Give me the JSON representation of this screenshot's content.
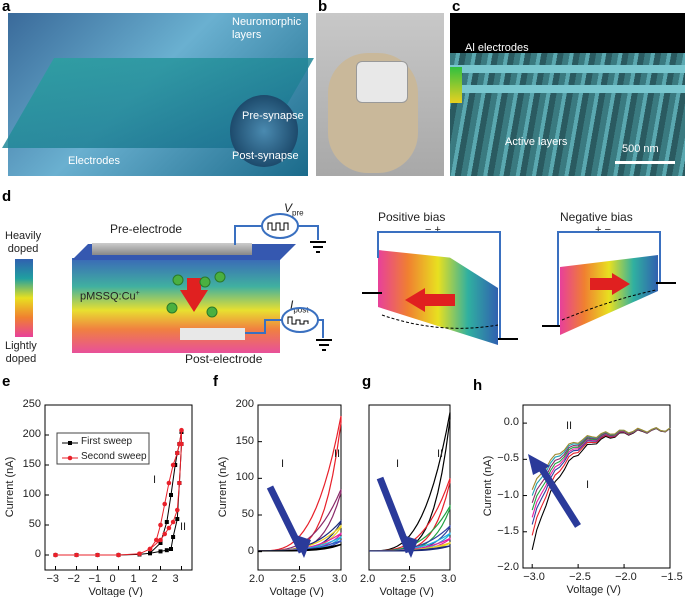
{
  "panels": {
    "a": {
      "letter": "a",
      "labels": {
        "neuromorphic": "Neuromorphic\nlayers",
        "pre": "Pre-synapse",
        "post": "Post-synapse",
        "electrodes": "Electrodes"
      }
    },
    "b": {
      "letter": "b"
    },
    "c": {
      "letter": "c",
      "labels": {
        "al": "Al electrodes",
        "active": "Active layers",
        "scale": "500 nm"
      }
    },
    "d": {
      "letter": "d",
      "colorbar_top": "Heavily\ndoped",
      "colorbar_bottom": "Lightly\ndoped",
      "pre_electrode": "Pre-electrode",
      "post_electrode": "Post-electrode",
      "material": "pMSSQ:Cu",
      "material_sup": "+",
      "vpre": "V",
      "vpre_sub": "pre",
      "ipost": "I",
      "ipost_sub": "post",
      "positive_bias": "Positive bias",
      "negative_bias": "Negative bias",
      "pos_signs": "−   +",
      "neg_signs": "+   −"
    },
    "e": {
      "letter": "e"
    },
    "f": {
      "letter": "f"
    },
    "g": {
      "letter": "g"
    },
    "h": {
      "letter": "h"
    }
  },
  "colors": {
    "heavy": "#3060b0",
    "light": "#e8409a",
    "arrow_red": "#e02020",
    "arrow_blue": "#2a3a9a",
    "circuit": "#3a70c0"
  },
  "chart_data": [
    {
      "panel": "e",
      "type": "line",
      "xlabel": "Voltage (V)",
      "ylabel": "Current (nA)",
      "xlim": [
        -3.5,
        3.5
      ],
      "ylim": [
        -25,
        250
      ],
      "xticks": [
        "−3",
        "−2",
        "−1",
        "0",
        "1",
        "2",
        "3"
      ],
      "yticks": [
        "0",
        "50",
        "100",
        "150",
        "200",
        "250"
      ],
      "legend": {
        "placement": "top-left",
        "entries": [
          "First sweep",
          "Second sweep"
        ]
      },
      "annotations": [
        "I",
        "II"
      ],
      "series": [
        {
          "name": "First sweep",
          "color": "#000000",
          "marker": "square",
          "x": [
            -3,
            -2,
            -1,
            0,
            1,
            1.5,
            2,
            2.3,
            2.5,
            2.7,
            2.8,
            2.9,
            3,
            3,
            2.9,
            2.8,
            2.6,
            2.5,
            2.3,
            2,
            1.5,
            1,
            0,
            -3
          ],
          "y": [
            0,
            0,
            0,
            0,
            1,
            3,
            20,
            55,
            100,
            150,
            170,
            185,
            205,
            185,
            120,
            60,
            30,
            10,
            8,
            6,
            3,
            1,
            0,
            0
          ]
        },
        {
          "name": "Second sweep",
          "color": "#e8202a",
          "marker": "circle",
          "x": [
            -3,
            -2,
            -1,
            0,
            1,
            1.5,
            1.8,
            2,
            2.2,
            2.4,
            2.6,
            2.8,
            2.9,
            3,
            3,
            2.9,
            2.8,
            2.6,
            2.4,
            2.2,
            2,
            1.5,
            1,
            0,
            -3
          ],
          "y": [
            0,
            0,
            0,
            0,
            2,
            10,
            25,
            50,
            85,
            120,
            150,
            170,
            185,
            208,
            185,
            120,
            75,
            55,
            45,
            35,
            25,
            10,
            2,
            0,
            0
          ]
        }
      ]
    },
    {
      "panel": "f",
      "type": "line",
      "xlabel": "Voltage (V)",
      "ylabel": "Current (nA)",
      "xlim": [
        2.0,
        3.0
      ],
      "ylim": [
        -25,
        200
      ],
      "xticks": [
        "2.0",
        "2.5",
        "3.0"
      ],
      "yticks": [
        "0",
        "50",
        "100",
        "150",
        "200"
      ],
      "annotations": [
        "I",
        "II"
      ],
      "sweeps": [
        {
          "color": "#e8202a",
          "peak": 185
        },
        {
          "color": "#8a2a6a",
          "peak": 85
        },
        {
          "color": "#1a2a7a",
          "peak": 42
        },
        {
          "color": "#e8d020",
          "peak": 35
        },
        {
          "color": "#e020a0",
          "peak": 25
        },
        {
          "color": "#20b0e0",
          "peak": 20
        },
        {
          "color": "#3050c0",
          "peak": 15
        },
        {
          "color": "#000000",
          "peak": 10
        }
      ]
    },
    {
      "panel": "g",
      "type": "line",
      "xlabel": "Voltage (V)",
      "ylabel": "",
      "xlim": [
        2.0,
        3.0
      ],
      "ylim": [
        -25,
        200
      ],
      "xticks": [
        "2.0",
        "2.5",
        "3.0"
      ],
      "yticks": [],
      "annotations": [
        "I",
        "II"
      ],
      "sweeps": [
        {
          "color": "#000000",
          "peak": 190
        },
        {
          "color": "#e8202a",
          "peak": 100
        },
        {
          "color": "#20a040",
          "peak": 62
        },
        {
          "color": "#3040a0",
          "peak": 35
        },
        {
          "color": "#20b0e0",
          "peak": 25
        },
        {
          "color": "#e020a0",
          "peak": 18
        },
        {
          "color": "#e8d020",
          "peak": 12
        },
        {
          "color": "#1a2a7a",
          "peak": 8
        }
      ]
    },
    {
      "panel": "h",
      "type": "line",
      "xlabel": "Voltage (V)",
      "ylabel": "Current (nA)",
      "xlim": [
        -3.1,
        -1.5
      ],
      "ylim": [
        -2.0,
        0.25
      ],
      "xticks": [
        "−3.0",
        "−2.5",
        "−2.0",
        "−1.5"
      ],
      "yticks": [
        "0.0",
        "−0.5",
        "−1.0",
        "−1.5",
        "−2.0"
      ],
      "annotations": [
        "II",
        "I"
      ],
      "sweeps": [
        {
          "color": "#000000",
          "start": -1.75
        },
        {
          "color": "#e8202a",
          "start": -1.55
        },
        {
          "color": "#3040a0",
          "start": -1.4
        },
        {
          "color": "#e020a0",
          "start": -1.3
        },
        {
          "color": "#20a040",
          "start": -1.2
        },
        {
          "color": "#8a2a6a",
          "start": -1.1
        },
        {
          "color": "#20a0b0",
          "start": -1.0
        },
        {
          "color": "#a08a30",
          "start": -0.92
        }
      ]
    }
  ]
}
